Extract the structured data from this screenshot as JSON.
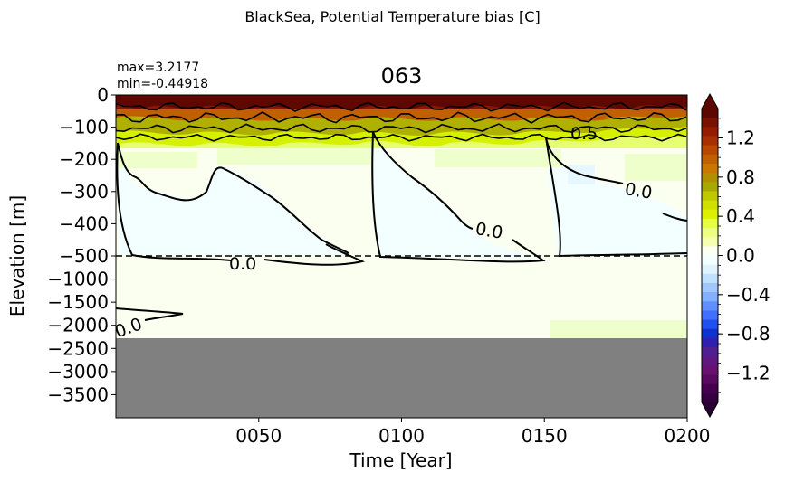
{
  "figure": {
    "suptitle": "BlackSea, Potential Temperature bias [C]",
    "title": "063",
    "max_text": "max=3.2177",
    "min_text": "min=-0.44918"
  },
  "chart_data": {
    "type": "heatmap",
    "title": "063",
    "xlabel": "Time [Year]",
    "ylabel": "Elevation [m]",
    "x_ticks": [
      "0050",
      "0100",
      "0150",
      "0200"
    ],
    "x_tick_values": [
      50,
      100,
      150,
      200
    ],
    "xlim": [
      0,
      200
    ],
    "y_ticks_upper": [
      "0",
      "−100",
      "−200",
      "−300",
      "−400",
      "−500"
    ],
    "y_ticks_lower": [
      "−1000",
      "−1500",
      "−2000",
      "−2500",
      "−3000",
      "−3500"
    ],
    "y_upper_values": [
      0,
      -100,
      -200,
      -300,
      -400,
      -500
    ],
    "y_lower_values": [
      -500,
      -1000,
      -1500,
      -2000,
      -2500,
      -3000,
      -3500,
      -4000
    ],
    "ylim": [
      -4000,
      0
    ],
    "split_depth": -500,
    "bottom_mask_depth": -2250,
    "colorbar": {
      "ticks": [
        "1.2",
        "0.8",
        "0.4",
        "0.0",
        "−0.4",
        "−0.8",
        "−1.2"
      ],
      "tick_values": [
        1.2,
        0.8,
        0.4,
        0.0,
        -0.4,
        -0.8,
        -1.2
      ],
      "range": [
        -1.5,
        1.5
      ],
      "extend": "both",
      "colormap": "gnuplot2-like diverging",
      "colors": {
        "min_extend": "#2a0032",
        "max_extend": "#5a0800",
        "land_mask": "#808080",
        "near_zero": "#fbfff0",
        "slightly_negative": "#f3ffff",
        "slightly_positive": "#eeffcc"
      }
    },
    "contour_labels": [
      "0.0",
      "0.0",
      "0.0",
      "0.0",
      "0.5"
    ],
    "contour_levels": [
      0.0,
      0.5
    ],
    "annotations": {
      "max": 3.2177,
      "min": -0.44918
    }
  }
}
